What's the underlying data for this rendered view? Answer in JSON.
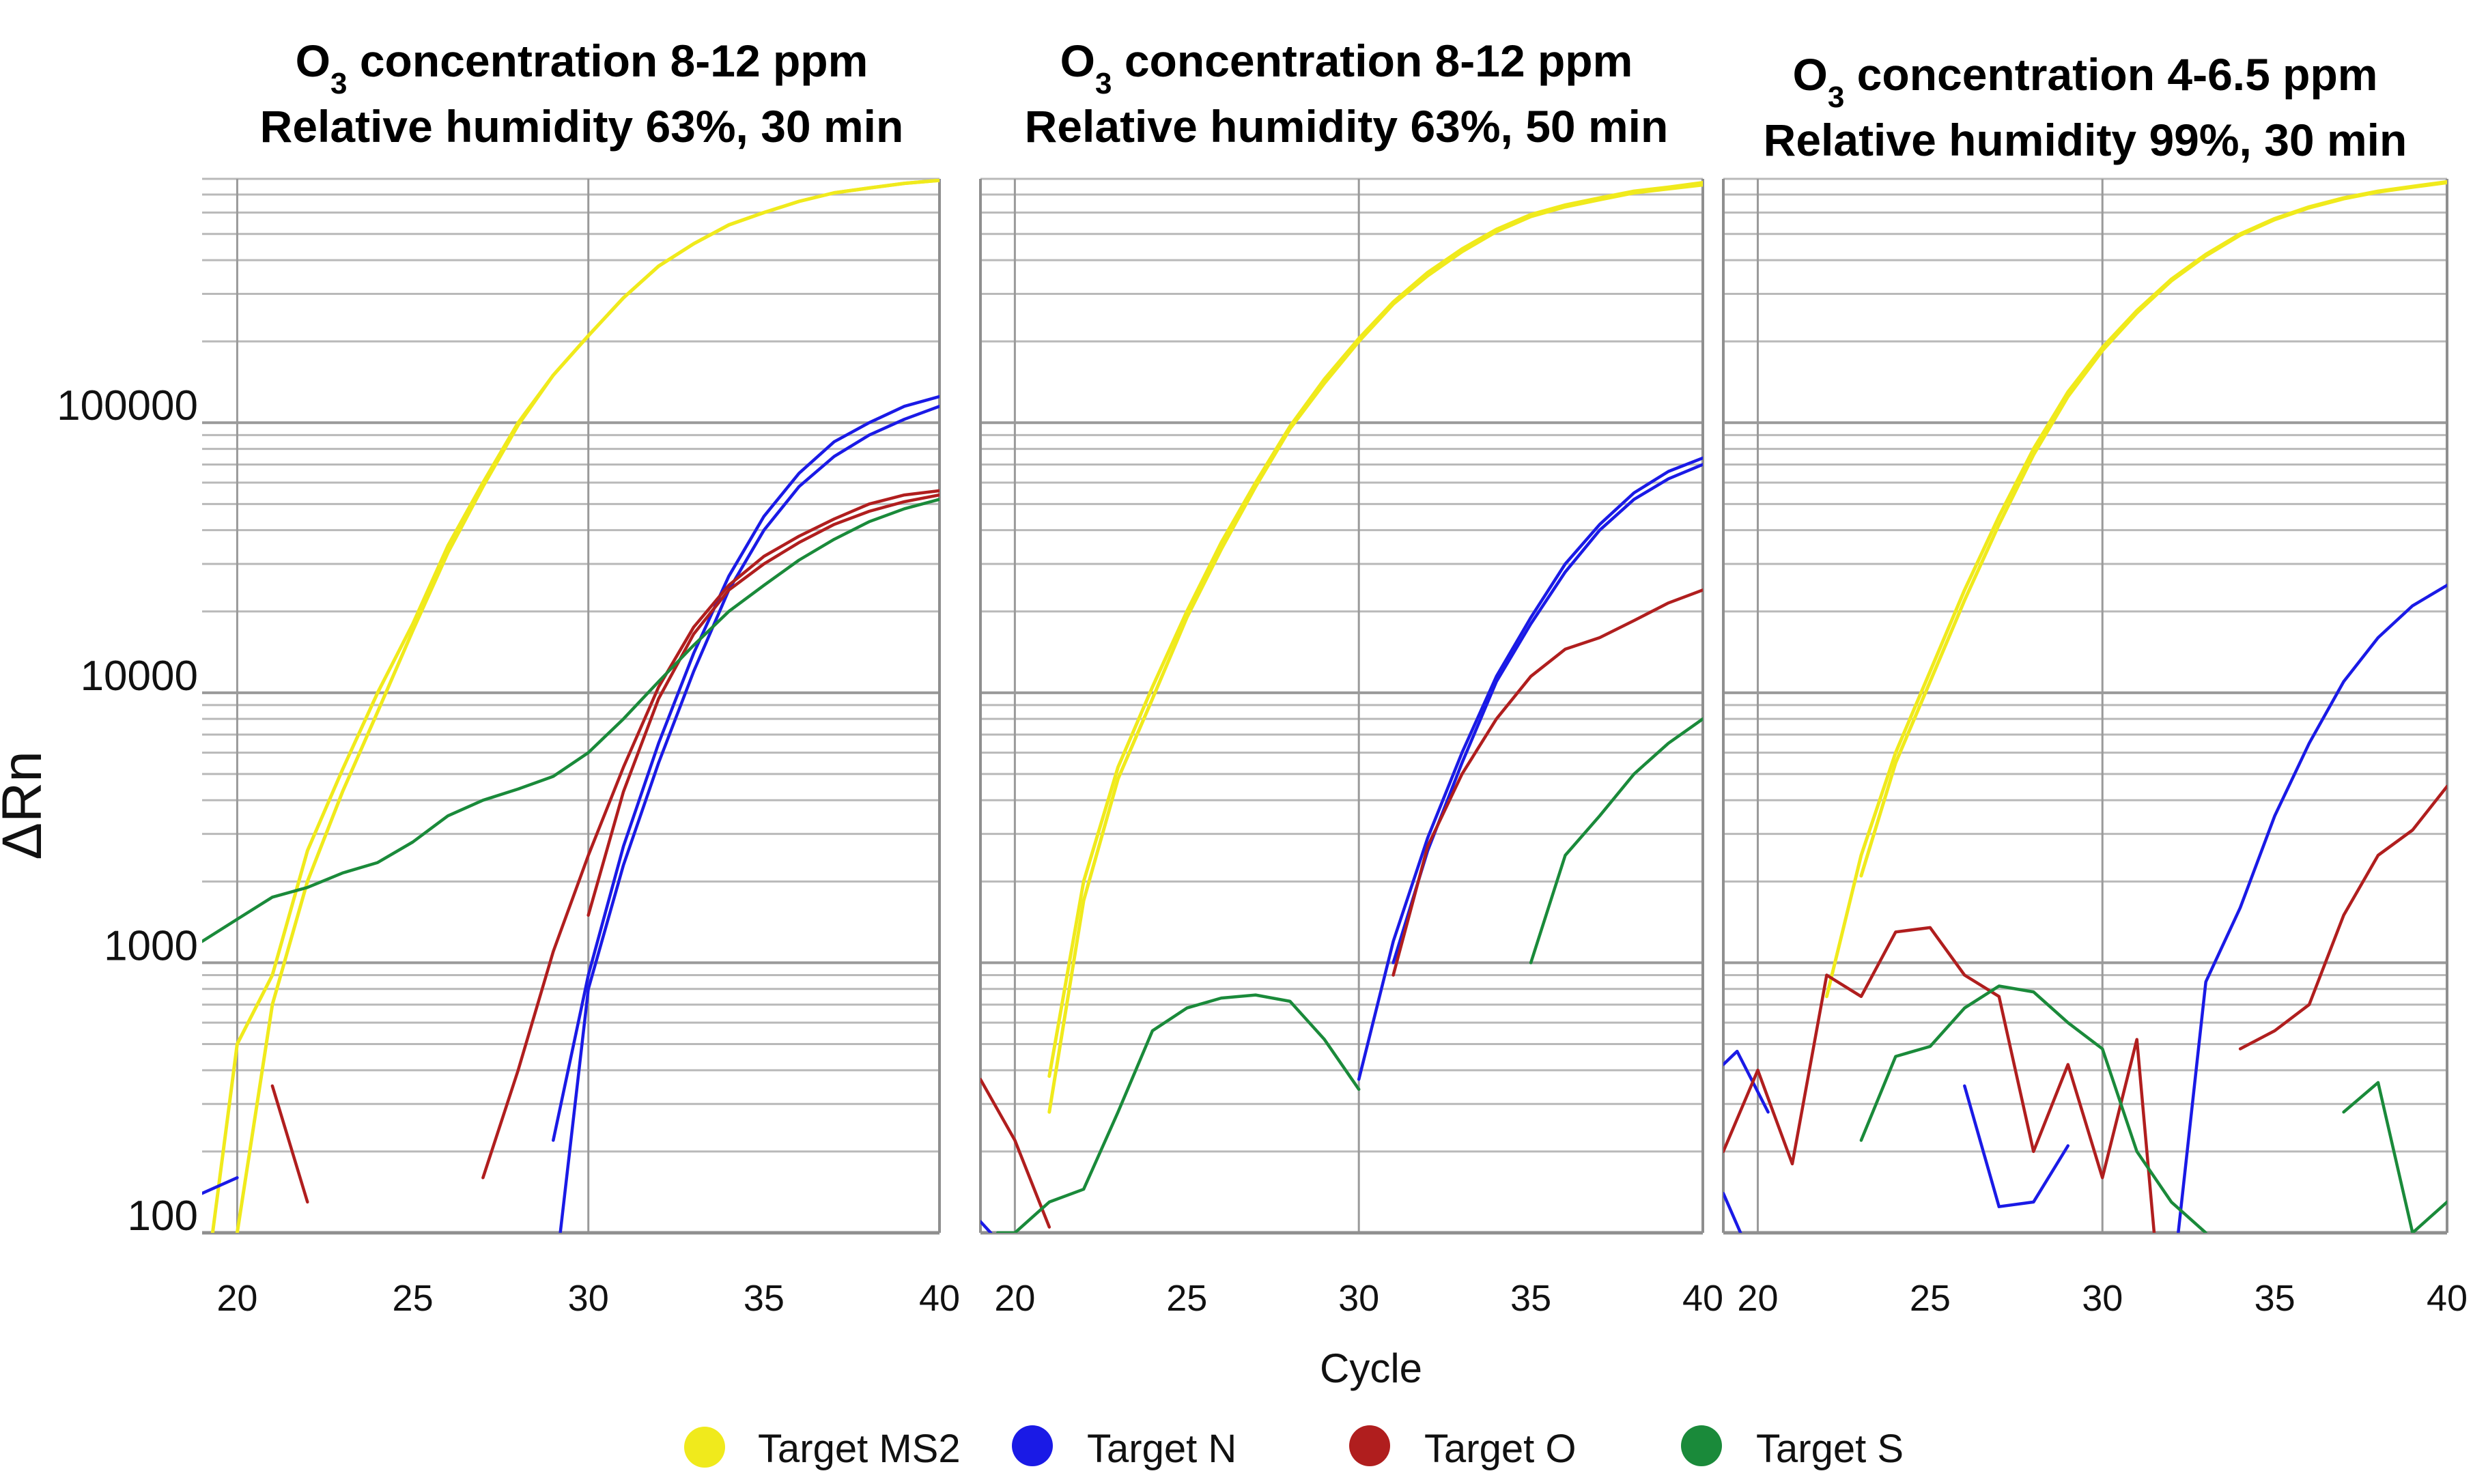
{
  "chart_data": {
    "type": "line",
    "ylabel": "ΔRn",
    "xlabel": "Cycle",
    "yscale": "log",
    "ylim": [
      100,
      800000
    ],
    "xlim": [
      19,
      40
    ],
    "y_ticks": [
      "100",
      "1000",
      "10000",
      "100000"
    ],
    "y_tick_values": [
      100,
      1000,
      10000,
      100000
    ],
    "x_tick_values": [
      20,
      25,
      30,
      35,
      40
    ],
    "colors": {
      "Target MS2": "#f0ea1c",
      "Target N": "#1a1ae6",
      "Target O": "#b01e1e",
      "Target S": "#1a8a3a"
    },
    "legend": [
      {
        "name": "Target MS2",
        "color": "#f0ea1c"
      },
      {
        "name": "Target N",
        "color": "#1a1ae6"
      },
      {
        "name": "Target O",
        "color": "#b01e1e"
      },
      {
        "name": "Target S",
        "color": "#1a8a3a"
      }
    ],
    "panels": [
      {
        "title_line1_pre": "O",
        "title_line1_sub": "3",
        "title_line1_post": " concentration 8-12 ppm",
        "title_line2": "Relative humidity 63%, 30 min",
        "series": [
          {
            "target": "Target MS2",
            "x": [
              19.3,
              20,
              21,
              22,
              23,
              24,
              25,
              26,
              27,
              28,
              29,
              30,
              31,
              32,
              33,
              34,
              35,
              36,
              37,
              38,
              39,
              40
            ],
            "y": [
              100,
              500,
              900,
              2600,
              5200,
              10000,
              18000,
              35000,
              60000,
              100000,
              150000,
              210000,
              290000,
              380000,
              460000,
              540000,
              600000,
              660000,
              710000,
              740000,
              770000,
              790000
            ]
          },
          {
            "target": "Target MS2",
            "x": [
              20,
              21,
              22,
              23,
              24,
              25,
              26,
              27,
              28,
              29,
              30,
              31,
              32,
              33,
              34,
              35,
              36,
              37,
              38,
              39,
              40
            ],
            "y": [
              100,
              700,
              2000,
              4300,
              8500,
              17000,
              33000,
              58000,
              98000,
              150000,
              210000,
              290000,
              380000,
              460000,
              540000,
              600000,
              660000,
              710000,
              740000,
              770000,
              790000
            ]
          },
          {
            "target": "Target N",
            "x": [
              19,
              20
            ],
            "y": [
              140,
              160
            ]
          },
          {
            "target": "Target N",
            "x": [
              29,
              30,
              31,
              32,
              33,
              34,
              35,
              36,
              37,
              38,
              39,
              40
            ],
            "y": [
              220,
              900,
              2700,
              6500,
              14000,
              27000,
              45000,
              65000,
              85000,
              100000,
              115000,
              125000
            ]
          },
          {
            "target": "Target N",
            "x": [
              29.2,
              30,
              31,
              32,
              33,
              34,
              35,
              36,
              37,
              38,
              39,
              40
            ],
            "y": [
              100,
              800,
              2300,
              5500,
              12000,
              24000,
              40000,
              58000,
              75000,
              90000,
              103000,
              115000
            ]
          },
          {
            "target": "Target O",
            "x": [
              21,
              22
            ],
            "y": [
              350,
              130
            ]
          },
          {
            "target": "Target O",
            "x": [
              27,
              28,
              29,
              30,
              31,
              32,
              33,
              34,
              35,
              36,
              37,
              38,
              39,
              40
            ],
            "y": [
              160,
              400,
              1100,
              2500,
              5300,
              10500,
              17500,
              25000,
              32000,
              38000,
              44000,
              50000,
              54000,
              56000
            ]
          },
          {
            "target": "Target O",
            "x": [
              30,
              31,
              32,
              33,
              34,
              35,
              36,
              37,
              38,
              39,
              40
            ],
            "y": [
              1500,
              4300,
              9500,
              16500,
              24000,
              30000,
              36000,
              42000,
              47000,
              51000,
              54000
            ]
          },
          {
            "target": "Target S",
            "x": [
              19,
              20,
              21,
              22,
              23,
              24,
              25,
              26,
              27,
              28,
              29,
              30,
              31,
              32,
              33,
              34,
              35,
              36,
              37,
              38,
              39,
              40
            ],
            "y": [
              1200,
              1450,
              1750,
              1900,
              2150,
              2350,
              2800,
              3500,
              4000,
              4400,
              4900,
              6000,
              8000,
              11000,
              15000,
              20000,
              25000,
              31000,
              37000,
              43000,
              48000,
              52000
            ]
          }
        ]
      },
      {
        "title_line1_pre": "O",
        "title_line1_sub": "3",
        "title_line1_post": " concentration 8-12 ppm",
        "title_line2": "Relative humidity 63%, 50 min",
        "series": [
          {
            "target": "Target MS2",
            "x": [
              21,
              22,
              23,
              24,
              25,
              26,
              27,
              28,
              29,
              30,
              31,
              32,
              33,
              34,
              35,
              36,
              37,
              38,
              39,
              40
            ],
            "y": [
              280,
              1700,
              4800,
              9500,
              19000,
              34000,
              58000,
              95000,
              140000,
              200000,
              275000,
              350000,
              430000,
              510000,
              580000,
              630000,
              670000,
              710000,
              735000,
              760000
            ]
          },
          {
            "target": "Target MS2",
            "x": [
              21,
              22,
              23,
              24,
              25,
              26,
              27,
              28,
              29,
              30,
              31,
              32,
              33,
              34,
              35,
              36,
              37,
              38,
              39,
              40
            ],
            "y": [
              380,
              2000,
              5300,
              10500,
              20000,
              36000,
              60000,
              97000,
              145000,
              205000,
              280000,
              360000,
              440000,
              520000,
              590000,
              640000,
              680000,
              720000,
              745000,
              775000
            ]
          },
          {
            "target": "Target N",
            "x": [
              19,
              19.3
            ],
            "y": [
              110,
              95
            ]
          },
          {
            "target": "Target N",
            "x": [
              30,
              31,
              32,
              33,
              34,
              35,
              36,
              37,
              38,
              39,
              40
            ],
            "y": [
              370,
              1200,
              2900,
              6000,
              11500,
              19000,
              30000,
              42000,
              55000,
              66000,
              74000
            ]
          },
          {
            "target": "Target N",
            "x": [
              31,
              32,
              33,
              34,
              35,
              36,
              37,
              38,
              39,
              40
            ],
            "y": [
              1000,
              2600,
              5500,
              11000,
              18000,
              28000,
              40000,
              52000,
              62000,
              70000
            ]
          },
          {
            "target": "Target O",
            "x": [
              19,
              20,
              21
            ],
            "y": [
              370,
              220,
              105
            ]
          },
          {
            "target": "Target O",
            "x": [
              31,
              32,
              33,
              34,
              35,
              36,
              37,
              38,
              39,
              40
            ],
            "y": [
              900,
              2700,
              5000,
              8000,
              11500,
              14500,
              16000,
              18500,
              21500,
              24000
            ]
          },
          {
            "target": "Target S",
            "x": [
              19.5,
              20,
              21,
              22,
              23,
              24,
              25,
              26,
              27,
              28,
              29,
              30
            ],
            "y": [
              85,
              100,
              130,
              145,
              280,
              560,
              680,
              740,
              760,
              720,
              520,
              340
            ]
          },
          {
            "target": "Target S",
            "x": [
              35,
              36,
              37,
              38,
              39,
              40
            ],
            "y": [
              1000,
              2500,
              3500,
              5000,
              6500,
              8000
            ]
          }
        ]
      },
      {
        "title_line1_pre": "O",
        "title_line1_sub": "3",
        "title_line1_post": " concentration 4-6.5 ppm",
        "title_line2": "Relative humidity 99%, 30 min",
        "series": [
          {
            "target": "Target MS2",
            "x": [
              22,
              23,
              24,
              25,
              26,
              27,
              28,
              29,
              30,
              31,
              32,
              33,
              34,
              35,
              36,
              37,
              38,
              39,
              40
            ],
            "y": [
              750,
              2500,
              6000,
              12000,
              24000,
              45000,
              80000,
              130000,
              190000,
              260000,
              340000,
              420000,
              500000,
              570000,
              630000,
              680000,
              720000,
              750000,
              780000
            ]
          },
          {
            "target": "Target MS2",
            "x": [
              23,
              24,
              25,
              26,
              27,
              28,
              29,
              30,
              31,
              32,
              33,
              34,
              35,
              36,
              37,
              38,
              39,
              40
            ],
            "y": [
              2100,
              5500,
              11000,
              22000,
              42000,
              76000,
              125000,
              185000,
              255000,
              335000,
              415000,
              495000,
              565000,
              625000,
              675000,
              715000,
              745000,
              775000
            ]
          },
          {
            "target": "Target N",
            "x": [
              19,
              19.4,
              20.3
            ],
            "y": [
              420,
              470,
              280
            ]
          },
          {
            "target": "Target N",
            "x": [
              19,
              19.5
            ],
            "y": [
              140,
              85
            ]
          },
          {
            "target": "Target N",
            "x": [
              26,
              27,
              28,
              29
            ],
            "y": [
              350,
              125,
              130,
              210
            ]
          },
          {
            "target": "Target N",
            "x": [
              32.2,
              33,
              34,
              35,
              36,
              37,
              38,
              39,
              40
            ],
            "y": [
              90,
              850,
              1600,
              3500,
              6500,
              11000,
              16000,
              21000,
              25000
            ]
          },
          {
            "target": "Target O",
            "x": [
              19,
              20,
              21,
              22,
              23,
              24,
              25,
              26,
              27,
              28,
              29,
              30,
              31,
              31.5
            ],
            "y": [
              200,
              400,
              180,
              900,
              750,
              1300,
              1350,
              900,
              750,
              200,
              420,
              160,
              520,
              90
            ]
          },
          {
            "target": "Target O",
            "x": [
              34,
              35,
              36,
              37,
              38,
              39,
              40
            ],
            "y": [
              480,
              560,
              700,
              1500,
              2500,
              3100,
              4500
            ]
          },
          {
            "target": "Target S",
            "x": [
              23,
              24,
              25,
              26,
              27,
              28,
              29,
              30,
              31,
              32,
              33
            ],
            "y": [
              220,
              450,
              490,
              680,
              820,
              780,
              600,
              480,
              200,
              130,
              90
            ]
          },
          {
            "target": "Target S",
            "x": [
              37,
              38,
              39,
              40
            ],
            "y": [
              280,
              360,
              80,
              130
            ]
          }
        ]
      }
    ]
  }
}
